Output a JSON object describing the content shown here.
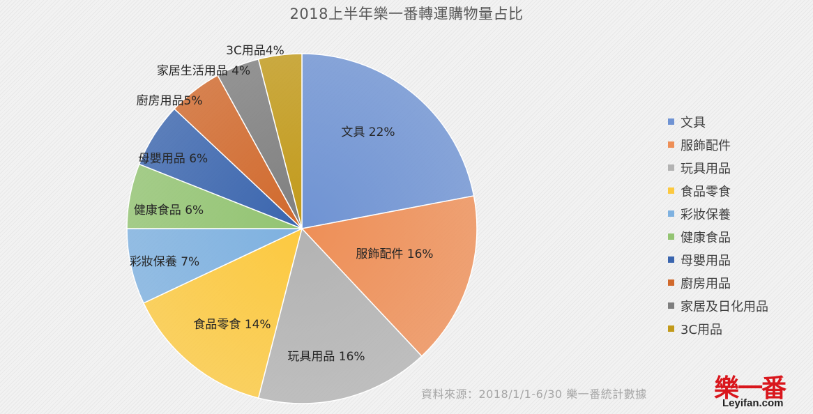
{
  "chart_data": {
    "type": "pie",
    "title": "2018上半年樂一番轉運購物量占比",
    "slices": [
      {
        "name": "文具",
        "value": 22,
        "label": "文具 22%",
        "color": "#6f93d3"
      },
      {
        "name": "服飾配件",
        "value": 16,
        "label": "服飾配件 16%",
        "color": "#ee8f57"
      },
      {
        "name": "玩具用品",
        "value": 16,
        "label": "玩具用品 16%",
        "color": "#b3b3b3"
      },
      {
        "name": "食品零食",
        "value": 14,
        "label": "食品零食 14%",
        "color": "#fcc940"
      },
      {
        "name": "彩妝保養",
        "value": 7,
        "label": "彩妝保養 7%",
        "color": "#7eb1e0"
      },
      {
        "name": "健康食品",
        "value": 6,
        "label": "健康食品 6%",
        "color": "#93c472"
      },
      {
        "name": "母嬰用品",
        "value": 6,
        "label": "母嬰用品 6%",
        "color": "#3a65ae"
      },
      {
        "name": "廚房用品",
        "value": 5,
        "label": "廚房用品5%",
        "color": "#d1692c"
      },
      {
        "name": "家居及日化用品",
        "value": 4,
        "label": "家居生活用品 4%",
        "color": "#7f7f7f"
      },
      {
        "name": "3C用品",
        "value": 4,
        "label": "3C用品4%",
        "color": "#c29a1a"
      }
    ],
    "legend_position": "right"
  },
  "source_note": "資料來源：2018/1/1-6/30 樂一番統計數據",
  "logo": {
    "text": "樂一番",
    "site": "Leyifan.com"
  }
}
